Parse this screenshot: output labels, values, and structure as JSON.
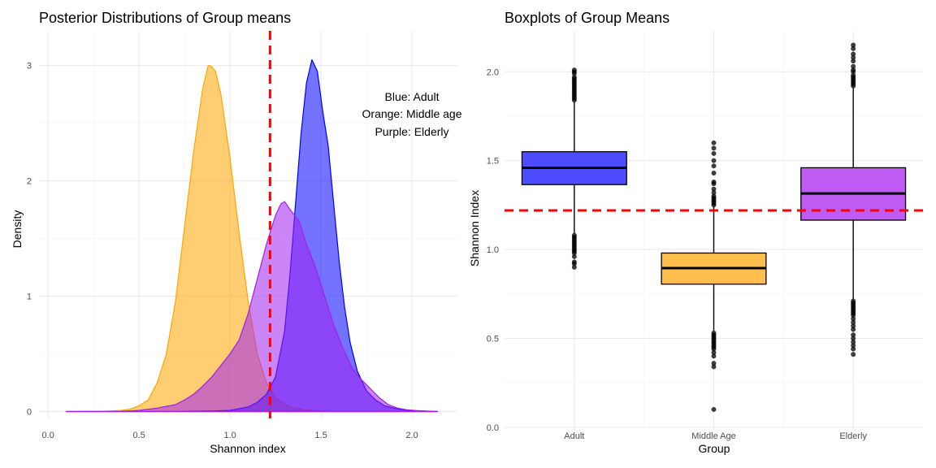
{
  "chart_data": [
    {
      "type": "area",
      "title": "Posterior Distributions of Group means",
      "xlabel": "Shannon index",
      "ylabel": "Density",
      "xlim": [
        -0.05,
        2.25
      ],
      "ylim": [
        -0.06,
        3.3
      ],
      "xticks": [
        0.0,
        0.5,
        1.0,
        1.5,
        2.0
      ],
      "xtick_labels": [
        "0.0",
        "0.5",
        "1.0",
        "1.5",
        "2.0"
      ],
      "yticks": [
        0,
        1,
        2,
        3
      ],
      "ytick_labels": [
        "0",
        "1",
        "2",
        "3"
      ],
      "grid": true,
      "reference_line": {
        "x": 1.22,
        "color": "#ff0000",
        "style": "dashed"
      },
      "annotations": [
        "Blue: Adult",
        "Orange: Middle age",
        "Purple: Elderly"
      ],
      "series": [
        {
          "color": "#ffa500",
          "points": [
            [
              0.1,
              0
            ],
            [
              0.3,
              0.002
            ],
            [
              0.4,
              0.01
            ],
            [
              0.45,
              0.02
            ],
            [
              0.5,
              0.05
            ],
            [
              0.55,
              0.1
            ],
            [
              0.6,
              0.25
            ],
            [
              0.65,
              0.5
            ],
            [
              0.7,
              0.95
            ],
            [
              0.75,
              1.6
            ],
            [
              0.8,
              2.25
            ],
            [
              0.85,
              2.8
            ],
            [
              0.88,
              3.0
            ],
            [
              0.9,
              2.99
            ],
            [
              0.92,
              2.95
            ],
            [
              0.95,
              2.75
            ],
            [
              1.0,
              2.2
            ],
            [
              1.05,
              1.55
            ],
            [
              1.1,
              0.95
            ],
            [
              1.15,
              0.5
            ],
            [
              1.2,
              0.25
            ],
            [
              1.25,
              0.12
            ],
            [
              1.3,
              0.06
            ],
            [
              1.35,
              0.03
            ],
            [
              1.4,
              0.015
            ],
            [
              1.5,
              0.005
            ],
            [
              1.6,
              0.001
            ],
            [
              1.8,
              0
            ],
            [
              2.14,
              0
            ]
          ]
        },
        {
          "color": "#0000ff",
          "points": [
            [
              0.1,
              0
            ],
            [
              0.7,
              0
            ],
            [
              0.9,
              0.005
            ],
            [
              1.0,
              0.01
            ],
            [
              1.1,
              0.04
            ],
            [
              1.15,
              0.08
            ],
            [
              1.2,
              0.15
            ],
            [
              1.25,
              0.3
            ],
            [
              1.3,
              0.7
            ],
            [
              1.33,
              1.2
            ],
            [
              1.36,
              1.8
            ],
            [
              1.39,
              2.4
            ],
            [
              1.42,
              2.85
            ],
            [
              1.45,
              3.05
            ],
            [
              1.48,
              2.95
            ],
            [
              1.51,
              2.6
            ],
            [
              1.54,
              2.3
            ],
            [
              1.57,
              1.8
            ],
            [
              1.6,
              1.3
            ],
            [
              1.63,
              0.9
            ],
            [
              1.66,
              0.6
            ],
            [
              1.7,
              0.35
            ],
            [
              1.75,
              0.18
            ],
            [
              1.8,
              0.1
            ],
            [
              1.85,
              0.05
            ],
            [
              1.9,
              0.03
            ],
            [
              1.95,
              0.015
            ],
            [
              2.0,
              0.006
            ],
            [
              2.14,
              0
            ]
          ]
        },
        {
          "color": "#a020f0",
          "points": [
            [
              0.1,
              0
            ],
            [
              0.4,
              0.002
            ],
            [
              0.5,
              0.01
            ],
            [
              0.6,
              0.03
            ],
            [
              0.7,
              0.06
            ],
            [
              0.75,
              0.1
            ],
            [
              0.8,
              0.15
            ],
            [
              0.85,
              0.22
            ],
            [
              0.9,
              0.3
            ],
            [
              0.95,
              0.4
            ],
            [
              1.0,
              0.5
            ],
            [
              1.05,
              0.62
            ],
            [
              1.1,
              0.85
            ],
            [
              1.15,
              1.15
            ],
            [
              1.2,
              1.45
            ],
            [
              1.25,
              1.7
            ],
            [
              1.28,
              1.8
            ],
            [
              1.3,
              1.82
            ],
            [
              1.33,
              1.75
            ],
            [
              1.38,
              1.65
            ],
            [
              1.42,
              1.45
            ],
            [
              1.47,
              1.25
            ],
            [
              1.52,
              1.0
            ],
            [
              1.57,
              0.75
            ],
            [
              1.62,
              0.55
            ],
            [
              1.67,
              0.38
            ],
            [
              1.72,
              0.28
            ],
            [
              1.77,
              0.2
            ],
            [
              1.82,
              0.12
            ],
            [
              1.87,
              0.06
            ],
            [
              1.92,
              0.03
            ],
            [
              1.97,
              0.015
            ],
            [
              2.03,
              0.008
            ],
            [
              2.14,
              0
            ]
          ]
        }
      ]
    },
    {
      "type": "box",
      "title": "Boxplots of Group Means",
      "xlabel": "Group",
      "ylabel": "Shannon Index",
      "categories": [
        "Adult",
        "Middle Age",
        "Elderly"
      ],
      "ylim": [
        -0.01,
        2.23
      ],
      "yticks": [
        0.0,
        0.5,
        1.0,
        1.5,
        2.0
      ],
      "ytick_labels": [
        "0.0",
        "0.5",
        "1.0",
        "1.5",
        "2.0"
      ],
      "grid": true,
      "reference_line": {
        "y": 1.22,
        "color": "#ff0000",
        "style": "dashed"
      },
      "series": [
        {
          "category": "Adult",
          "color": "#4d4dff",
          "q1": 1.365,
          "median": 1.46,
          "q3": 1.55,
          "whisker_low": 1.09,
          "whisker_high": 1.83,
          "outliers": [
            0.9,
            0.92,
            0.93,
            0.96,
            0.98,
            0.99,
            1.0,
            1.01,
            1.02,
            1.03,
            1.04,
            1.05,
            1.06,
            1.07,
            1.08,
            1.84,
            1.85,
            1.86,
            1.87,
            1.88,
            1.89,
            1.9,
            1.91,
            1.92,
            1.93,
            1.94,
            1.95,
            1.96,
            1.97,
            1.99,
            2.0,
            2.01
          ]
        },
        {
          "category": "Middle Age",
          "color": "#ffbf4d",
          "q1": 0.805,
          "median": 0.895,
          "q3": 0.98,
          "whisker_low": 0.54,
          "whisker_high": 1.24,
          "outliers": [
            0.1,
            0.34,
            0.36,
            0.4,
            0.42,
            0.44,
            0.45,
            0.46,
            0.47,
            0.48,
            0.49,
            0.5,
            0.51,
            0.52,
            0.53,
            1.25,
            1.26,
            1.27,
            1.28,
            1.29,
            1.3,
            1.32,
            1.34,
            1.37,
            1.38,
            1.43,
            1.47,
            1.5,
            1.54,
            1.57,
            1.6
          ]
        },
        {
          "category": "Elderly",
          "color": "#bf5af2",
          "q1": 1.165,
          "median": 1.315,
          "q3": 1.46,
          "whisker_low": 0.72,
          "whisker_high": 1.91,
          "outliers": [
            0.41,
            0.44,
            0.46,
            0.48,
            0.5,
            0.52,
            0.55,
            0.57,
            0.59,
            0.61,
            0.63,
            0.64,
            0.65,
            0.66,
            0.67,
            0.68,
            0.69,
            0.7,
            0.71,
            1.92,
            1.93,
            1.94,
            1.95,
            1.96,
            1.97,
            1.98,
            2.0,
            2.01,
            2.03,
            2.06,
            2.08,
            2.1,
            2.13,
            2.15
          ]
        }
      ]
    }
  ]
}
